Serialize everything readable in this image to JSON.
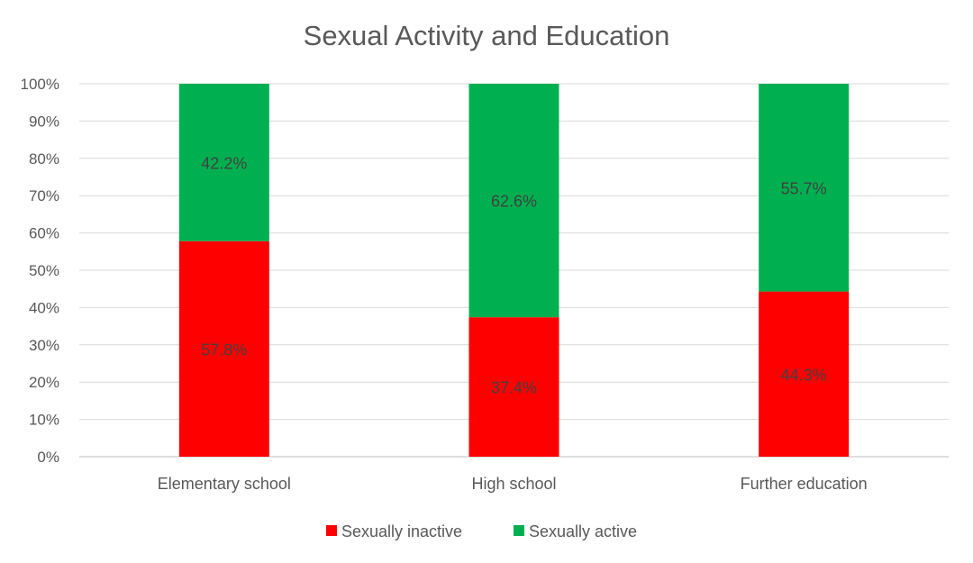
{
  "chart_data": {
    "type": "bar",
    "stacked": true,
    "title": "Sexual Activity and Education",
    "categories": [
      "Elementary school",
      "High school",
      "Further education"
    ],
    "series": [
      {
        "name": "Sexually inactive",
        "values": [
          57.8,
          37.4,
          44.3
        ],
        "labels": [
          "57.8%",
          "37.4%",
          "44.3%"
        ],
        "color": "#ff0000"
      },
      {
        "name": "Sexually active",
        "values": [
          42.2,
          62.6,
          55.7
        ],
        "labels": [
          "42.2%",
          "62.6%",
          "55.7%"
        ],
        "color": "#00b050"
      }
    ],
    "ylim": [
      0,
      100
    ],
    "yticks": [
      "0%",
      "10%",
      "20%",
      "30%",
      "40%",
      "50%",
      "60%",
      "70%",
      "80%",
      "90%",
      "100%"
    ],
    "grid": true,
    "legend": "bottom"
  }
}
